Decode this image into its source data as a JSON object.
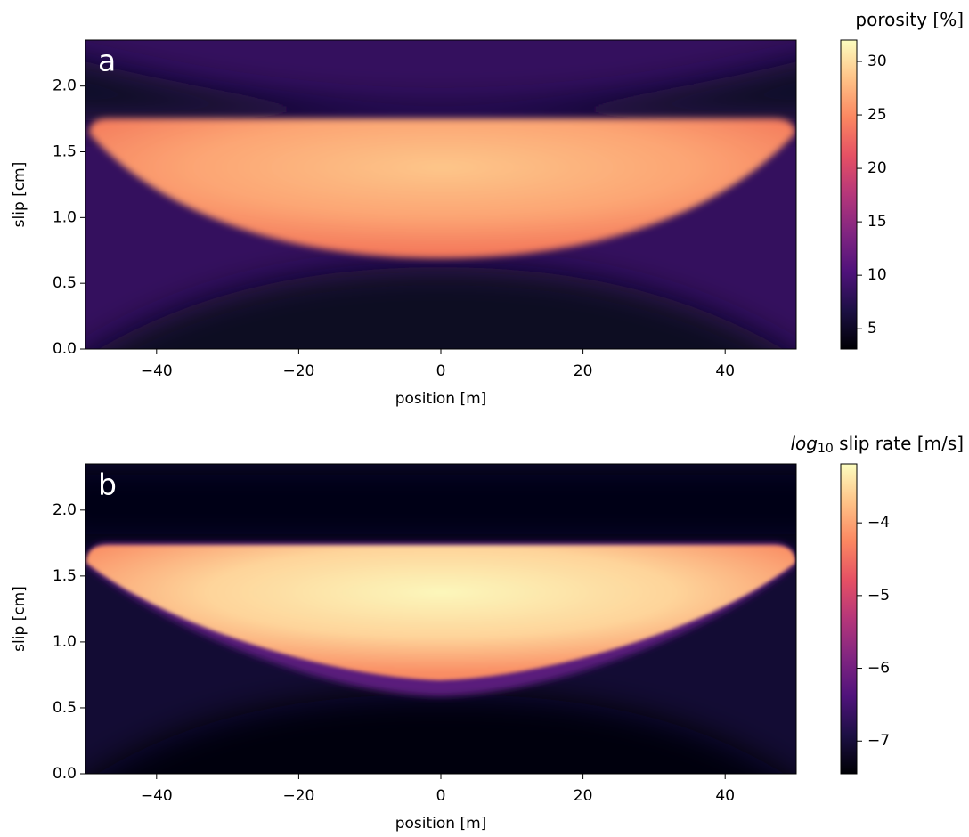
{
  "chart_data": [
    {
      "type": "heatmap",
      "panel_label": "a",
      "xlabel": "position [m]",
      "ylabel": "slip [cm]",
      "xlim": [
        -50,
        50
      ],
      "xticks": [
        {
          "value": -40,
          "label": "−40"
        },
        {
          "value": -20,
          "label": "−20"
        },
        0,
        20,
        40
      ],
      "ylim": [
        0,
        2.35
      ],
      "yticks": [
        {
          "value": 0,
          "label": "0.0"
        },
        0.5,
        {
          "value": 1,
          "label": "1.0"
        },
        1.5,
        {
          "value": 2,
          "label": "2.0"
        }
      ],
      "colorbar_label": [
        "porosity [%]"
      ],
      "clim": [
        3.1,
        32
      ],
      "cticks": [
        5,
        10,
        15,
        20,
        25,
        30
      ],
      "colormap": [
        "#000004",
        "#1c1044",
        "#4f127b",
        "#812581",
        "#b5367a",
        "#e55064",
        "#fb8761",
        "#fec287",
        "#fcfdbf"
      ]
    },
    {
      "type": "heatmap",
      "panel_label": "b",
      "xlabel": "position [m]",
      "ylabel": "slip [cm]",
      "xlim": [
        -50,
        50
      ],
      "xticks": [
        {
          "value": -40,
          "label": "−40"
        },
        {
          "value": -20,
          "label": "−20"
        },
        0,
        20,
        40
      ],
      "ylim": [
        0,
        2.35
      ],
      "yticks": [
        {
          "value": 0,
          "label": "0.0"
        },
        0.5,
        {
          "value": 1,
          "label": "1.0"
        },
        1.5,
        {
          "value": 2,
          "label": "2.0"
        }
      ],
      "colorbar_label": [
        "log",
        "10",
        " slip rate [m/s]"
      ],
      "clim": [
        -7.45,
        -3.19
      ],
      "cticks": [
        {
          "value": -7,
          "label": "−7"
        },
        {
          "value": -6,
          "label": "−6"
        },
        {
          "value": -5,
          "label": "−5"
        },
        {
          "value": -4,
          "label": "−4"
        }
      ],
      "colormap": [
        "#000004",
        "#1c1044",
        "#4f127b",
        "#812581",
        "#b5367a",
        "#e55064",
        "#fb8761",
        "#fec287",
        "#fcfdbf"
      ]
    }
  ]
}
